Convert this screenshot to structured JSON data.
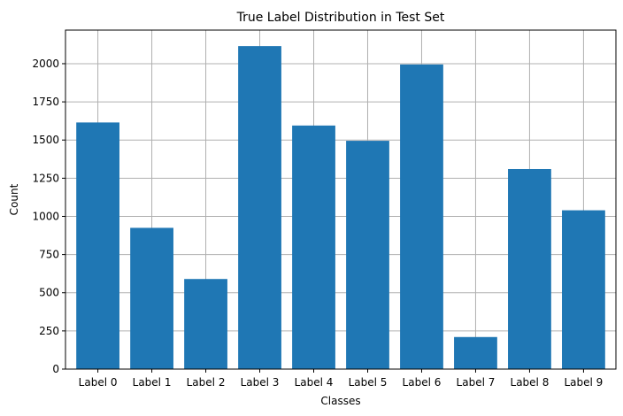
{
  "chart_data": {
    "type": "bar",
    "title": "True Label Distribution in Test Set",
    "xlabel": "Classes",
    "ylabel": "Count",
    "categories": [
      "Label 0",
      "Label 1",
      "Label 2",
      "Label 3",
      "Label 4",
      "Label 5",
      "Label 6",
      "Label 7",
      "Label 8",
      "Label 9"
    ],
    "values": [
      1615,
      925,
      590,
      2115,
      1595,
      1495,
      1995,
      210,
      1310,
      1040
    ],
    "ylim": [
      0,
      2220
    ],
    "yticks": [
      0,
      250,
      500,
      750,
      1000,
      1250,
      1500,
      1750,
      2000
    ],
    "grid": true,
    "bar_color": "#1f77b4",
    "grid_color": "#b0b0b0"
  }
}
